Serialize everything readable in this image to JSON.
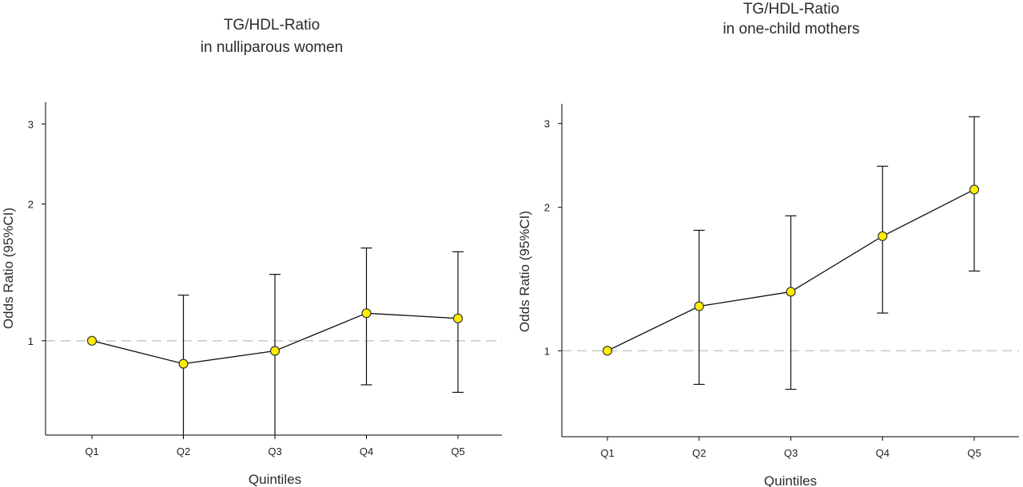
{
  "colors": {
    "point_fill": "#ffee00",
    "line": "#111111",
    "reference_line": "#c8c8c8"
  },
  "chart_data": [
    {
      "type": "line",
      "title": "TG/HDL-Ratio",
      "subtitle": "in nulliparous women",
      "xlabel": "Quintiles",
      "ylabel": "Odds Ratio (95%CI)",
      "y_scale": "log",
      "ylim": [
        0.62,
        3.35
      ],
      "yticks": [
        1,
        2,
        3
      ],
      "ytick_labels": [
        "1",
        "2",
        "3"
      ],
      "categories": [
        "Q1",
        "Q2",
        "Q3",
        "Q4",
        "Q5"
      ],
      "values": [
        1.0,
        0.89,
        0.95,
        1.15,
        1.12
      ],
      "ci_lower": [
        null,
        0.6,
        0.61,
        0.8,
        0.77
      ],
      "ci_upper": [
        null,
        1.26,
        1.4,
        1.6,
        1.57
      ],
      "reference_line": 1,
      "grid": false
    },
    {
      "type": "line",
      "title": "TG/HDL-Ratio",
      "subtitle": "in one-child mothers",
      "xlabel": "Quintiles",
      "ylabel": "Odds Ratio (95%CI)",
      "y_scale": "log",
      "ylim": [
        0.66,
        3.3
      ],
      "yticks": [
        1,
        2,
        3
      ],
      "ytick_labels": [
        "1",
        "2",
        "3"
      ],
      "categories": [
        "Q1",
        "Q2",
        "Q3",
        "Q4",
        "Q5"
      ],
      "values": [
        1.0,
        1.24,
        1.33,
        1.74,
        2.18
      ],
      "ci_lower": [
        null,
        0.85,
        0.83,
        1.2,
        1.47
      ],
      "ci_upper": [
        null,
        1.79,
        1.92,
        2.44,
        3.1
      ],
      "reference_line": 1,
      "grid": false
    }
  ]
}
